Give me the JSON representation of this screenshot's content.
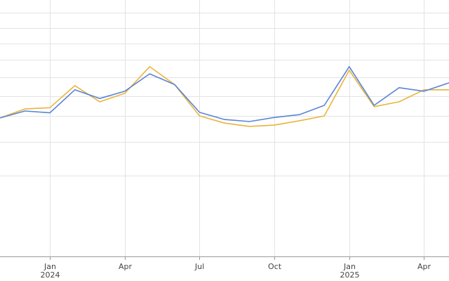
{
  "chart_data": {
    "type": "line",
    "x": [
      "2023-11",
      "2023-12",
      "2024-01",
      "2024-02",
      "2024-03",
      "2024-04",
      "2024-05",
      "2024-06",
      "2024-07",
      "2024-08",
      "2024-09",
      "2024-10",
      "2024-11",
      "2024-12",
      "2025-01",
      "2025-02",
      "2025-03",
      "2025-04",
      "2025-05"
    ],
    "series": [
      {
        "color": "#5b84d6",
        "values": [
          54,
          56.7,
          56,
          65,
          61.6,
          64.4,
          71.2,
          67,
          56.2,
          53.4,
          52.6,
          54.2,
          55.3,
          58.9,
          74,
          58.9,
          65.8,
          64.4,
          67.7
        ]
      },
      {
        "color": "#e8b53a",
        "values": [
          54,
          57.5,
          58,
          66.6,
          60.3,
          63.6,
          74,
          67,
          54.8,
          52,
          50.7,
          51.2,
          52.9,
          54.8,
          72.6,
          58.4,
          60.3,
          65,
          65
        ]
      }
    ],
    "xlim": [
      "2023-11",
      "2025-05"
    ],
    "xticks": [
      {
        "value": "2024-01",
        "label": "Jan\n2024"
      },
      {
        "value": "2024-04",
        "label": "Apr"
      },
      {
        "value": "2024-07",
        "label": "Jul"
      },
      {
        "value": "2024-10",
        "label": "Oct"
      },
      {
        "value": "2025-01",
        "label": "Jan\n2025"
      },
      {
        "value": "2025-04",
        "label": "Apr"
      }
    ],
    "ylim": [
      0,
      100
    ],
    "yticks": [
      31.5,
      44.7,
      54.8,
      62.5,
      69.9,
      76.7,
      83,
      89,
      95
    ],
    "grid": true
  }
}
